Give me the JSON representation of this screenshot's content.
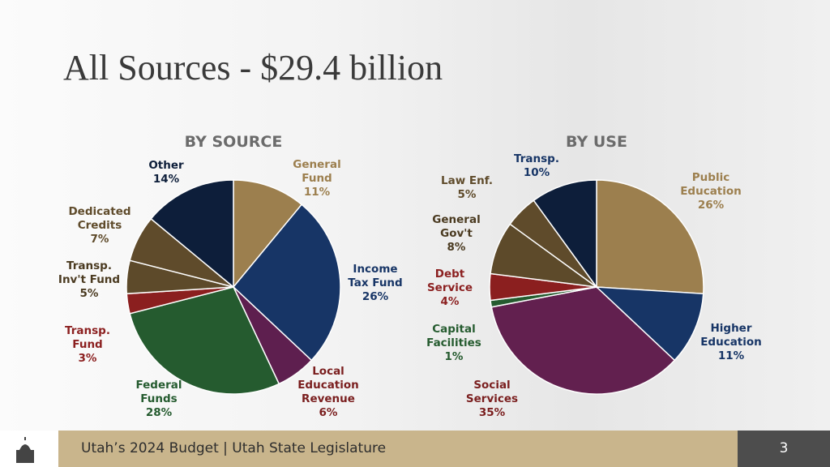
{
  "title": "All Sources - $29.4 billion",
  "footer": "Utah’s 2024 Budget | Utah State Legislature",
  "page_number": "3",
  "chart_data": [
    {
      "type": "pie",
      "title": "BY SOURCE",
      "categories": [
        "General Fund",
        "Income Tax Fund",
        "Local Education Revenue",
        "Federal Funds",
        "Transp. Fund",
        "Transp. Inv't Fund",
        "Dedicated Credits",
        "Other"
      ],
      "values": [
        11,
        26,
        6,
        28,
        3,
        5,
        7,
        14
      ],
      "value_labels": [
        "11%",
        "26%",
        "6%",
        "28%",
        "3%",
        "5%",
        "7%",
        "14%"
      ],
      "colors": [
        "#9c7f4e",
        "#173566",
        "#5e1f4f",
        "#255b2f",
        "#8b1f1f",
        "#5d4a2a",
        "#5f4b2b",
        "#0d1e3a"
      ]
    },
    {
      "type": "pie",
      "title": "BY USE",
      "categories": [
        "Public Education",
        "Higher Education",
        "Social Services",
        "Capital Facilities",
        "Debt Service",
        "General Gov't",
        "Law Enf.",
        "Transp."
      ],
      "values": [
        26,
        11,
        35,
        1,
        4,
        8,
        5,
        10
      ],
      "value_labels": [
        "26%",
        "11%",
        "35%",
        "1%",
        "4%",
        "8%",
        "5%",
        "10%"
      ],
      "colors": [
        "#9c7f4e",
        "#173566",
        "#62204f",
        "#255b2f",
        "#8b1f1f",
        "#5d4a2a",
        "#5f4b2b",
        "#0d1e3a"
      ]
    }
  ]
}
